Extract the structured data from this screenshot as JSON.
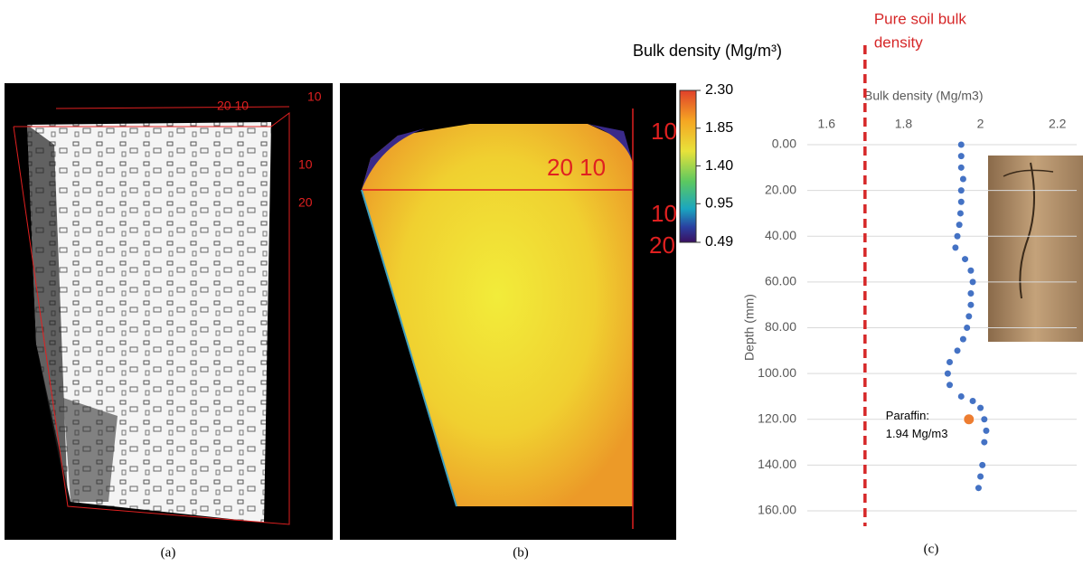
{
  "panels": {
    "a": {
      "caption": "(a)",
      "labels": [
        "20 10",
        "10",
        "10",
        "20"
      ]
    },
    "b": {
      "caption": "(b)",
      "labels": [
        "20 10",
        "10",
        "10",
        "20"
      ]
    }
  },
  "colorbar": {
    "title": "Bulk density (Mg/m³)",
    "clim": [
      0.49,
      2.3
    ],
    "ticks": [
      {
        "value": 2.3,
        "label": "2.30"
      },
      1.85,
      {
        "value": 1.4,
        "label": "1.40"
      },
      0.95,
      0.49
    ]
  },
  "chart_data": {
    "type": "scatter",
    "caption": "(c)",
    "xlabel": "Bulk density (Mg/m3)",
    "ylabel": "Depth (mm)",
    "xlim": [
      1.55,
      2.25
    ],
    "xticks": [
      1.6,
      1.8,
      2,
      2.2
    ],
    "ylim": [
      0,
      160
    ],
    "yticks": [
      {
        "value": 0,
        "label": "0.00"
      },
      {
        "value": 20,
        "label": "20.00"
      },
      {
        "value": 40,
        "label": "40.00"
      },
      {
        "value": 60,
        "label": "60.00"
      },
      {
        "value": 80,
        "label": "80.00"
      },
      {
        "value": 100,
        "label": "100.00"
      },
      {
        "value": 120,
        "label": "120.00"
      },
      {
        "value": 140,
        "label": "140.00"
      },
      {
        "value": 160,
        "label": "160.00"
      }
    ],
    "grid": true,
    "series": [
      {
        "color": "#4472c4",
        "x": [
          1.95,
          1.95,
          1.95,
          1.955,
          1.95,
          1.95,
          1.948,
          1.945,
          1.94,
          1.935,
          1.96,
          1.975,
          1.98,
          1.975,
          1.975,
          1.97,
          1.965,
          1.955,
          1.94,
          1.92,
          1.915,
          1.92,
          1.95,
          1.98,
          2.0,
          2.01,
          2.015,
          2.01,
          2.005,
          2.0,
          1.995
        ],
        "y": [
          0,
          5,
          10,
          15,
          20,
          25,
          30,
          35,
          40,
          45,
          50,
          55,
          60,
          65,
          70,
          75,
          80,
          85,
          90,
          95,
          100,
          105,
          110,
          112,
          115,
          120,
          125,
          130,
          140,
          145,
          150
        ]
      }
    ],
    "points": [
      {
        "color": "#ed7d31",
        "x": 1.97,
        "y": 120,
        "label": [
          "Paraffin:",
          "1.94 Mg/m3"
        ]
      }
    ],
    "reference": {
      "color": "#d62728",
      "value": 1.7,
      "label": [
        "Pure soil bulk",
        "density"
      ]
    }
  }
}
